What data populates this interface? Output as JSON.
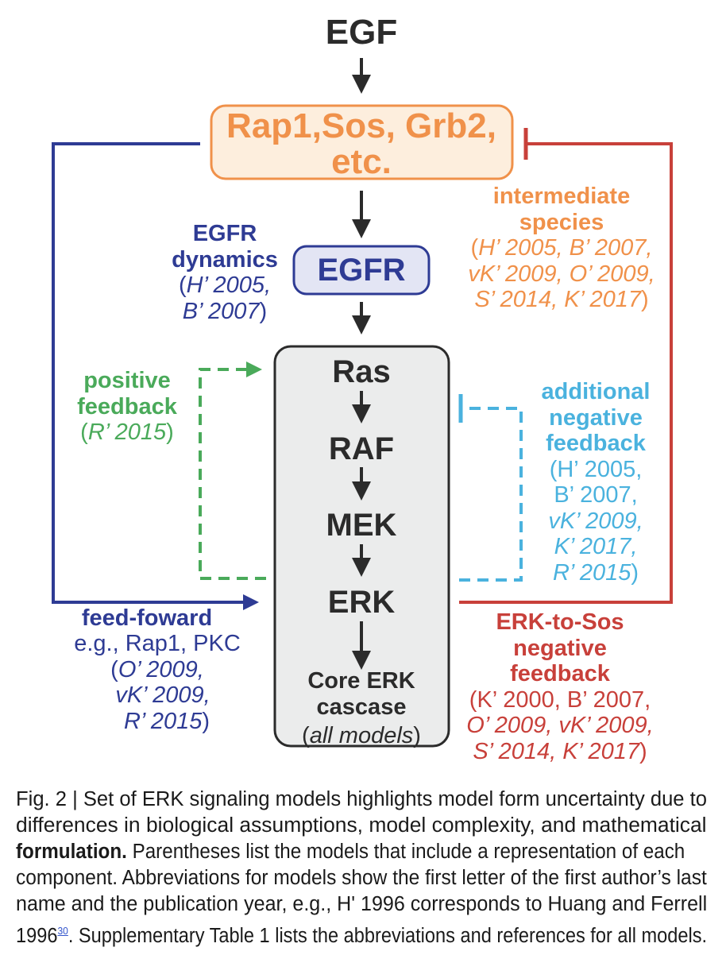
{
  "colors": {
    "dark": "#2b2b2b",
    "orange": "#f0914a",
    "orange_fill": "#fdeedd",
    "navy": "#2e3b94",
    "egfr_fill": "#e3e5f4",
    "red": "#c8403a",
    "green": "#4aaa5a",
    "cyan": "#4ab2de",
    "core_fill": "#ebecec"
  },
  "nodes": {
    "egf": "EGF",
    "intermediate_line1": "Rap1,Sos, Grb2,",
    "intermediate_line2": "etc.",
    "egfr": "EGFR",
    "ras": "Ras",
    "raf": "RAF",
    "mek": "MEK",
    "erk": "ERK"
  },
  "core": {
    "line1": "Core ERK",
    "line2": "cascase",
    "paren_open": "(",
    "italic": "all models",
    "paren_close": ")"
  },
  "egfr_dynamics": {
    "title1": "EGFR",
    "title2": "dynamics",
    "ref1": "H’ 2005,",
    "ref2": "B’ 2007"
  },
  "positive_feedback": {
    "title1": "positive",
    "title2": "feedback",
    "ref1": "R’ 2015"
  },
  "intermediate_species": {
    "title1": "intermediate",
    "title2": "species",
    "ref1": "H’ 2005, B’ 2007,",
    "ref2": "vK’ 2009, O’ 2009,",
    "ref3": "S’ 2014, K’ 2017"
  },
  "additional_negative_feedback": {
    "title1": "additional",
    "title2": "negative",
    "title3": "feedback",
    "ref1": "(H’ 2005,",
    "ref2": "B’ 2007,",
    "ref3": "vK’ 2009,",
    "ref4": "K’ 2017,",
    "ref5": "R’ 2015"
  },
  "feed_forward": {
    "title": "feed-foward",
    "line2": "e.g., Rap1, PKC",
    "ref1": "O’ 2009,",
    "ref2": "vK’ 2009,",
    "ref3": "R’ 2015"
  },
  "erk_to_sos": {
    "title1": "ERK-to-Sos",
    "title2": "negative",
    "title3": "feedback",
    "ref1": "(K’ 2000, B’ 2007,",
    "ref2": "O’ 2009, vK’ 2009,",
    "ref3": "S’ 2014, K’ 2017"
  },
  "caption": {
    "line1": "Fig. 2 | Set of ERK signaling models highlights model form uncertainty due to",
    "line2": "differences in biological assumptions, model complexity, and mathematical",
    "line3_bold": "formulation.",
    "line3_rest": " Parentheses list the models that include a representation of each",
    "line4": "component. Abbreviations for models show the first letter of the first author’s last",
    "line5": "name and the publication year, e.g., H' 1996 corresponds to Huang and Ferrell",
    "line6_start": "1996",
    "line6_ref": "30",
    "line6_rest": ". Supplementary Table 1 lists the abbreviations and references for all models."
  }
}
